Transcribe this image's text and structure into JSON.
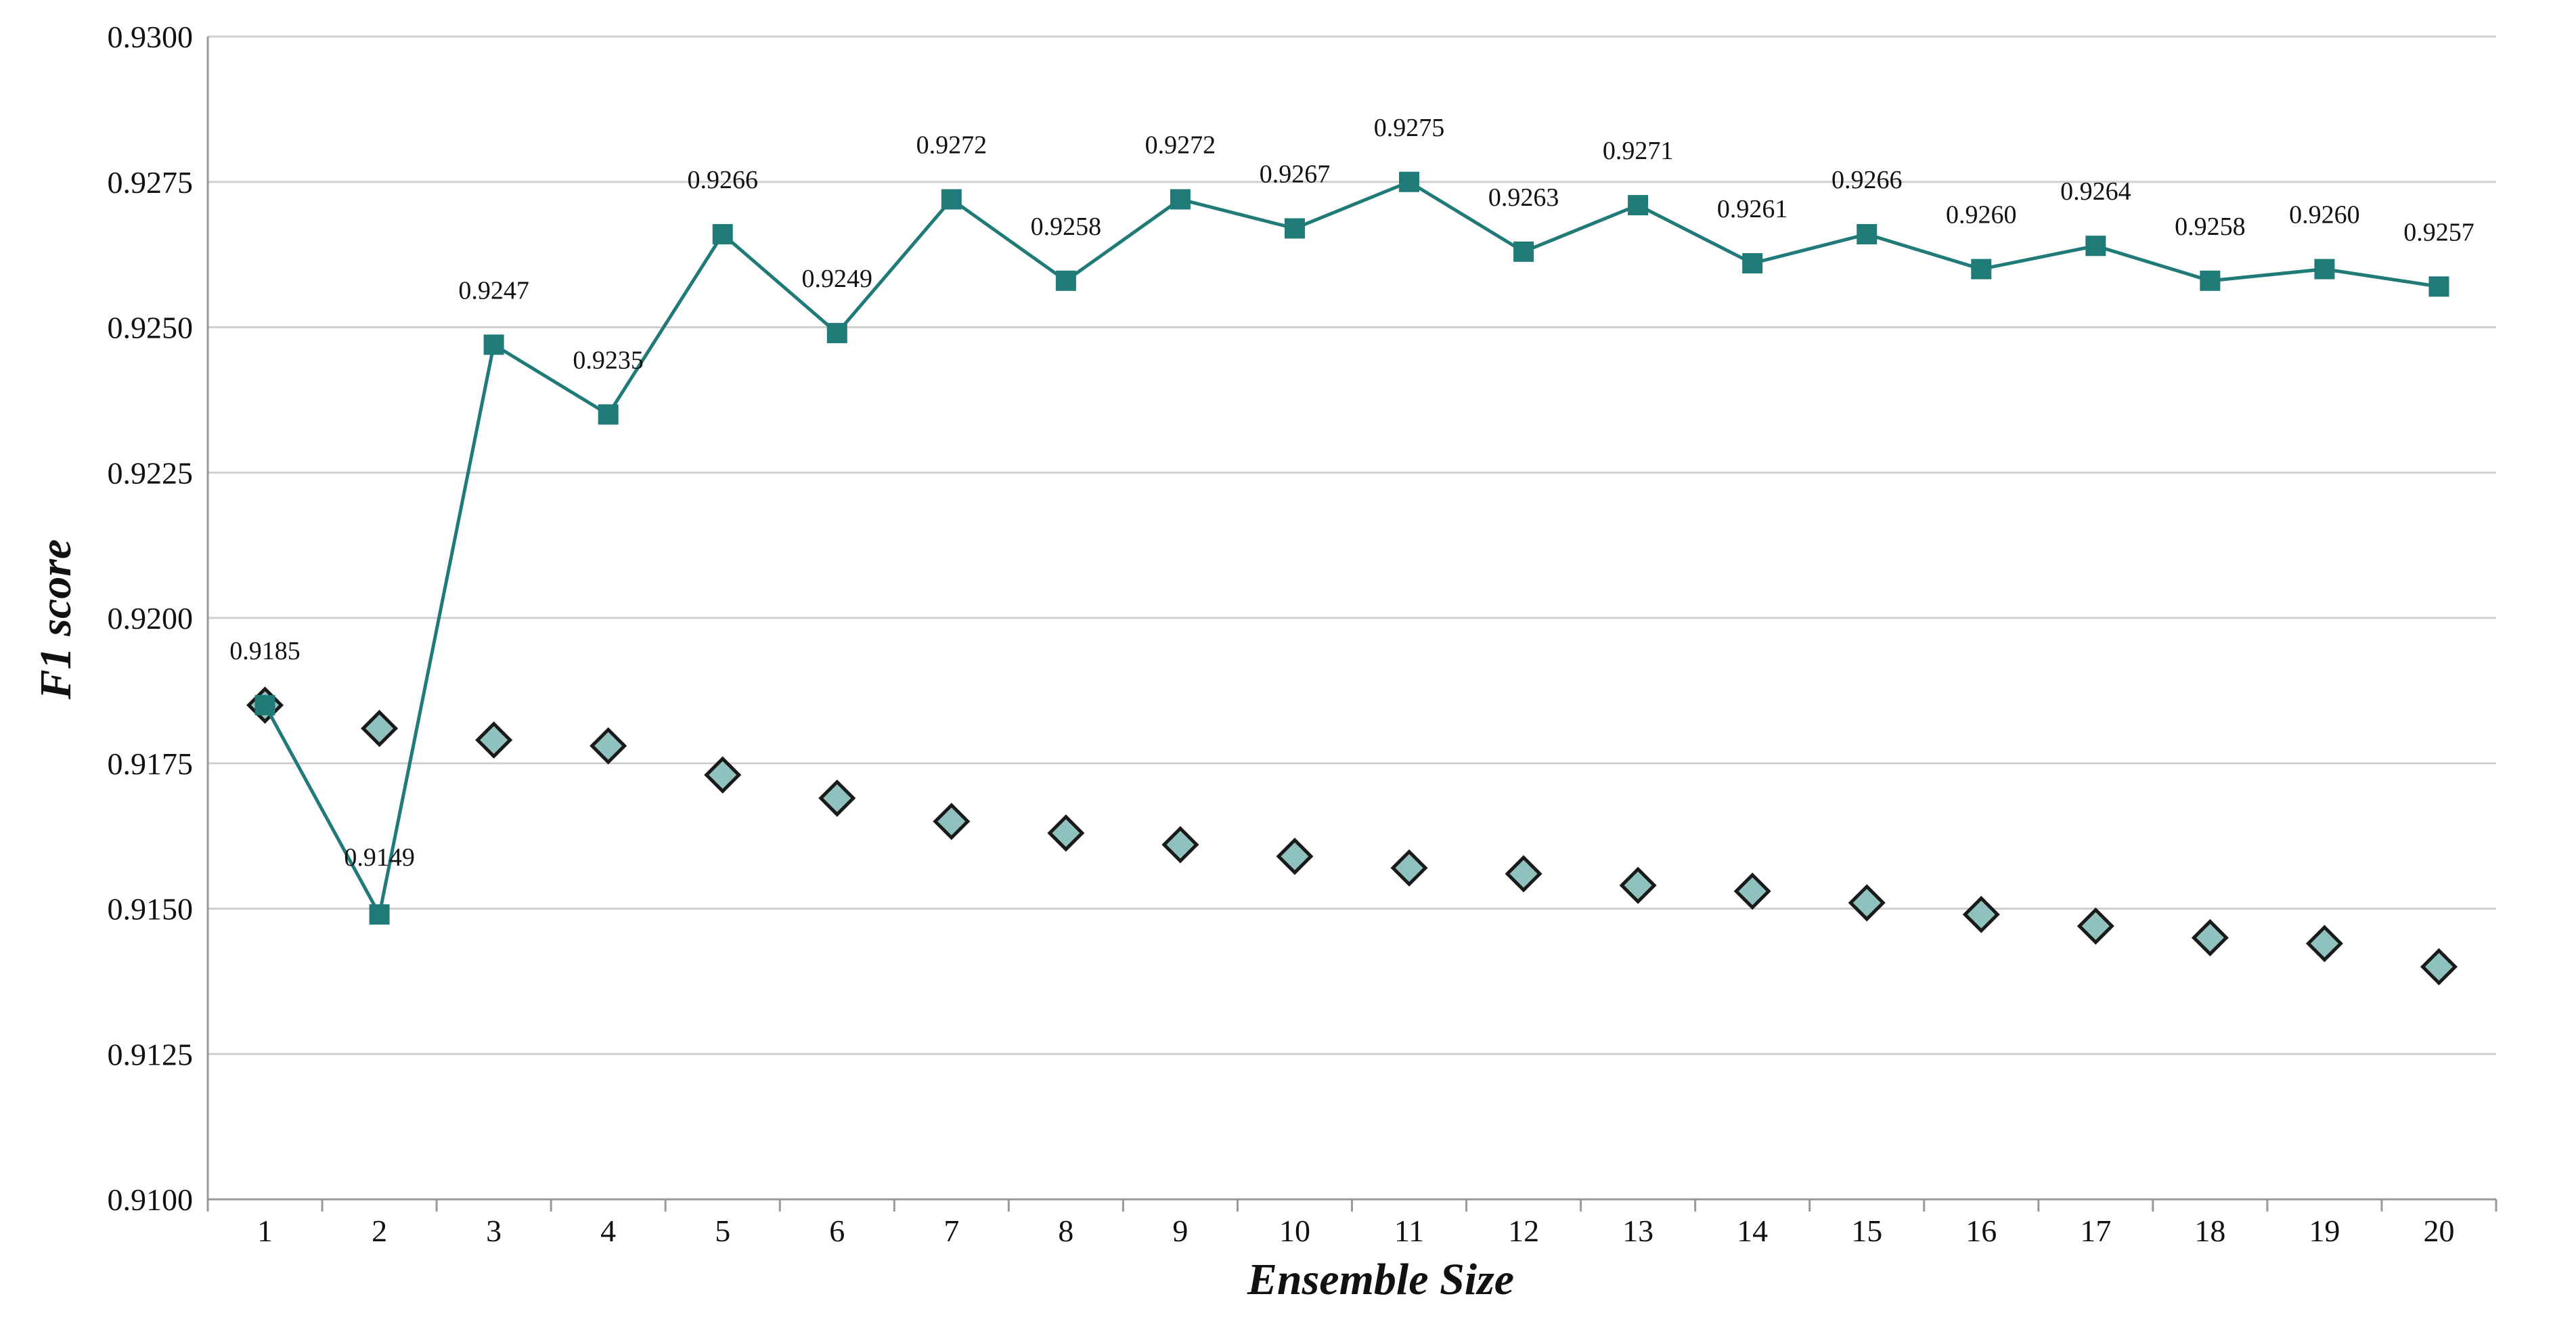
{
  "chart_data": {
    "type": "line",
    "xlabel": "Ensemble Size",
    "ylabel": "F1 score",
    "x": [
      1,
      2,
      3,
      4,
      5,
      6,
      7,
      8,
      9,
      10,
      11,
      12,
      13,
      14,
      15,
      16,
      17,
      18,
      19,
      20
    ],
    "ylim": [
      0.91,
      0.93
    ],
    "yticks": [
      "0.9100",
      "0.9125",
      "0.9150",
      "0.9175",
      "0.9200",
      "0.9225",
      "0.9250",
      "0.9275",
      "0.9300"
    ],
    "grid": true,
    "series": [
      {
        "name": "line-series",
        "style": "line-square-markers",
        "values": [
          0.9185,
          0.9149,
          0.9247,
          0.9235,
          0.9266,
          0.9249,
          0.9272,
          0.9258,
          0.9272,
          0.9267,
          0.9275,
          0.9263,
          0.9271,
          0.9261,
          0.9266,
          0.926,
          0.9264,
          0.9258,
          0.926,
          0.9257
        ],
        "labels": [
          "0.9185",
          "0.9149",
          "0.9247",
          "0.9235",
          "0.9266",
          "0.9249",
          "0.9272",
          "0.9258",
          "0.9272",
          "0.9267",
          "0.9275",
          "0.9263",
          "0.9271",
          "0.9261",
          "0.9266",
          "0.9260",
          "0.9264",
          "0.9258",
          "0.9260",
          "0.9257"
        ],
        "color": "#1f7a78"
      },
      {
        "name": "diamond-series",
        "style": "diamond-markers",
        "values": [
          0.9185,
          0.9181,
          0.9179,
          0.9178,
          0.9173,
          0.9169,
          0.9165,
          0.9163,
          0.9161,
          0.9159,
          0.9157,
          0.9156,
          0.9154,
          0.9153,
          0.9151,
          0.9149,
          0.9147,
          0.9145,
          0.9144,
          0.914
        ],
        "color": "#8fc1bf",
        "stroke": "#1a1a1a"
      }
    ],
    "colors": {
      "grid": "#cfcfcf",
      "axis": "#999999"
    }
  }
}
